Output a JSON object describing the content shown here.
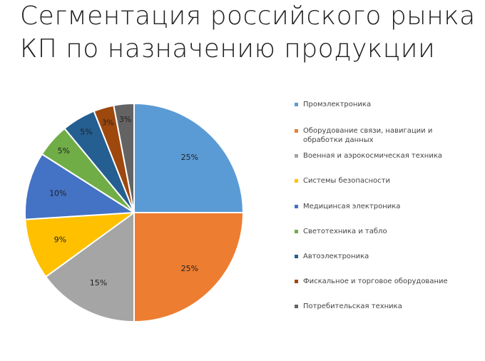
{
  "title_line1": "Сегментация российского рынка",
  "title_line2": "КП по назначению продукции",
  "chart_data": {
    "type": "pie",
    "series": [
      {
        "name": "Промэлектроника",
        "value": 25,
        "label": "25%",
        "color": "#5B9BD5"
      },
      {
        "name": "Оборудование связи, навигации и обработки данных",
        "value": 25,
        "label": "25%",
        "color": "#ED7D31"
      },
      {
        "name": "Военная и аэрокосмическая техника",
        "value": 15,
        "label": "15%",
        "color": "#A5A5A5"
      },
      {
        "name": "Системы безопасности",
        "value": 9,
        "label": "9%",
        "color": "#FFC000"
      },
      {
        "name": "Медицинсая электроника",
        "value": 10,
        "label": "10%",
        "color": "#4472C4"
      },
      {
        "name": "Светотехника и табло",
        "value": 5,
        "label": "5%",
        "color": "#70AD47"
      },
      {
        "name": "Автоэлектроника",
        "value": 5,
        "label": "5%",
        "color": "#255E91"
      },
      {
        "name": "Фискальное и торговое оборудование",
        "value": 3,
        "label": "3%",
        "color": "#9E480E"
      },
      {
        "name": "Потребительская техника",
        "value": 3,
        "label": "3%",
        "color": "#636363"
      }
    ],
    "legend_position": "right"
  }
}
